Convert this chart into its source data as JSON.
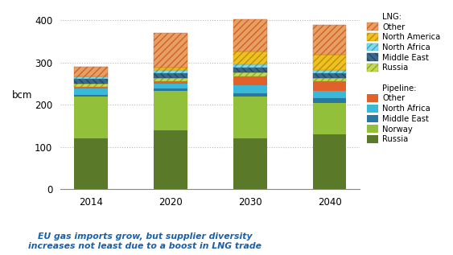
{
  "years": [
    "2014",
    "2020",
    "2030",
    "2040"
  ],
  "pipeline": {
    "Russia": [
      120,
      140,
      120,
      130
    ],
    "Norway": [
      100,
      93,
      100,
      75
    ],
    "Middle_East": [
      4,
      5,
      8,
      10
    ],
    "North_Africa": [
      14,
      12,
      18,
      18
    ],
    "Other": [
      5,
      5,
      22,
      22
    ]
  },
  "lng": {
    "Russia": [
      7,
      8,
      8,
      8
    ],
    "Middle_East": [
      12,
      12,
      12,
      12
    ],
    "North_Africa": [
      6,
      8,
      8,
      8
    ],
    "North_America": [
      0,
      5,
      30,
      35
    ],
    "Other": [
      22,
      82,
      77,
      72
    ]
  },
  "pipeline_colors": {
    "Russia": "#5a7a2a",
    "Norway": "#92c03a",
    "Middle_East": "#2878a0",
    "North_Africa": "#3ab8d8",
    "Other": "#e0622a"
  },
  "lng_base_colors": {
    "Russia": "#c5d85a",
    "Middle_East": "#3c6888",
    "North_Africa": "#88d8e8",
    "North_America": "#f0c020",
    "Other": "#e8a060"
  },
  "lng_hatch_colors": {
    "Russia": "#90a820",
    "Middle_East": "#20486a",
    "North_Africa": "#30a8c0",
    "North_America": "#b89010",
    "Other": "#d06030"
  },
  "ylim": [
    0,
    420
  ],
  "yticks": [
    0,
    100,
    200,
    300,
    400
  ],
  "ylabel": "bcm",
  "title_text": "EU gas imports grow, but supplier diversity\nincreases not least due to a boost in LNG trade",
  "title_color": "#1a5fa8",
  "grid_color": "#b8b8b8"
}
